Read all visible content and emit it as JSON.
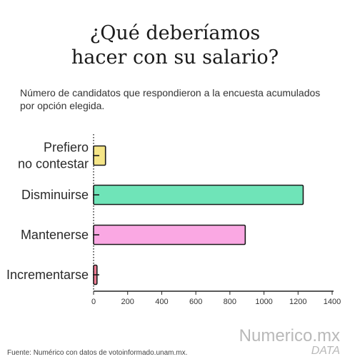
{
  "title_lines": [
    "¿Qué deberíamos",
    "hacer con su salario?"
  ],
  "subtitle": "Número de candidatos que respondieron a la encuesta acumulados por opción elegida.",
  "source": "Fuente: Numérico con datos de votoinformado.unam.mx.",
  "brand": {
    "name": "Numerico.mx",
    "tag": "DATA"
  },
  "chart_data": {
    "type": "bar",
    "orientation": "horizontal",
    "title": "¿Qué deberíamos hacer con su salario?",
    "subtitle": "Número de candidatos que respondieron a la encuesta acumulados por opción elegida.",
    "categories": [
      "Prefiero no contestar",
      "Disminuirse",
      "Mantenerse",
      "Incrementarse"
    ],
    "category_lines": [
      [
        "Prefiero",
        "no contestar"
      ],
      [
        "Disminuirse"
      ],
      [
        "Mantenerse"
      ],
      [
        "Incrementarse"
      ]
    ],
    "values": [
      70,
      1230,
      890,
      20
    ],
    "colors": [
      "#f4e27a",
      "#5fe1b0",
      "#f99ee0",
      "#ef6f8a"
    ],
    "xlim": [
      0,
      1400
    ],
    "xticks": [
      0,
      200,
      400,
      600,
      800,
      1000,
      1200,
      1400
    ],
    "xlabel": "",
    "ylabel": "",
    "grid": false,
    "legend": "none"
  }
}
